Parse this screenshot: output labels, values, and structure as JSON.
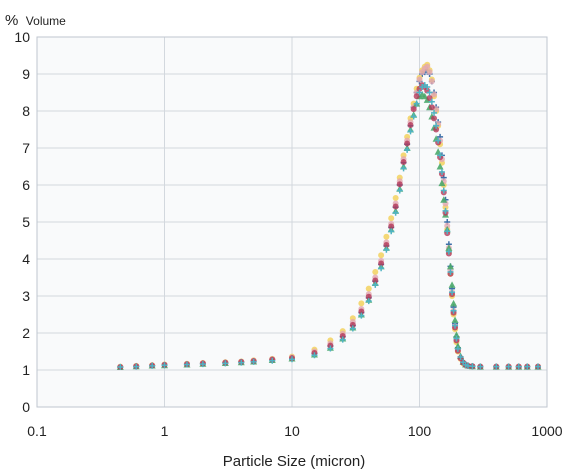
{
  "chart_data": {
    "type": "scatter",
    "title": "",
    "xlabel": "Particle Size (micron)",
    "ylabel_symbol": "%",
    "ylabel": "Volume",
    "x_scale": "log",
    "xlim": [
      0.1,
      1000
    ],
    "ylim": [
      0,
      10
    ],
    "grid": true,
    "x_ticks": [
      {
        "value": 0.1,
        "label": "0.1"
      },
      {
        "value": 1,
        "label": "1"
      },
      {
        "value": 10,
        "label": "10"
      },
      {
        "value": 100,
        "label": "100"
      },
      {
        "value": 1000,
        "label": "1000"
      }
    ],
    "y_ticks": [
      {
        "value": 0,
        "label": "0"
      },
      {
        "value": 1,
        "label": "1"
      },
      {
        "value": 2,
        "label": "2"
      },
      {
        "value": 3,
        "label": "3"
      },
      {
        "value": 4,
        "label": "4"
      },
      {
        "value": 5,
        "label": "5"
      },
      {
        "value": 6,
        "label": "6"
      },
      {
        "value": 7,
        "label": "7"
      },
      {
        "value": 8,
        "label": "8"
      },
      {
        "value": 9,
        "label": "9"
      },
      {
        "value": 10,
        "label": "10"
      }
    ],
    "x": [
      0.45,
      0.6,
      0.8,
      1,
      1.5,
      2,
      3,
      4,
      5,
      7,
      10,
      15,
      20,
      25,
      30,
      35,
      40,
      45,
      50,
      55,
      60,
      65,
      70,
      75,
      80,
      85,
      90,
      95,
      100,
      105,
      110,
      115,
      120,
      125,
      130,
      135,
      140,
      145,
      150,
      155,
      160,
      165,
      170,
      175,
      180,
      185,
      190,
      195,
      200,
      210,
      220,
      230,
      240,
      260,
      300,
      400,
      500,
      600,
      700,
      850
    ],
    "series": [
      {
        "color": "#3d6fa8",
        "marker": "plus",
        "values": [
          1.08,
          1.1,
          1.12,
          1.14,
          1.16,
          1.18,
          1.2,
          1.22,
          1.24,
          1.28,
          1.32,
          1.45,
          1.65,
          1.9,
          2.2,
          2.55,
          2.95,
          3.4,
          3.85,
          4.35,
          4.85,
          5.4,
          6.0,
          6.6,
          7.1,
          7.6,
          8.1,
          8.5,
          8.8,
          9.0,
          9.05,
          9.1,
          9.0,
          8.8,
          8.5,
          8.1,
          7.7,
          7.3,
          6.8,
          6.2,
          5.6,
          5.0,
          4.4,
          3.8,
          3.2,
          2.7,
          2.25,
          1.9,
          1.6,
          1.35,
          1.22,
          1.15,
          1.12,
          1.1,
          1.09,
          1.09,
          1.09,
          1.09,
          1.09,
          1.09
        ]
      },
      {
        "color": "#f2cf55",
        "marker": "circle",
        "values": [
          1.09,
          1.11,
          1.13,
          1.15,
          1.17,
          1.19,
          1.21,
          1.23,
          1.26,
          1.3,
          1.36,
          1.55,
          1.8,
          2.05,
          2.4,
          2.8,
          3.2,
          3.65,
          4.1,
          4.6,
          5.1,
          5.65,
          6.2,
          6.8,
          7.3,
          7.8,
          8.2,
          8.6,
          8.9,
          9.1,
          9.2,
          9.25,
          9.1,
          8.85,
          8.4,
          8.0,
          7.6,
          7.1,
          6.6,
          6.0,
          5.4,
          4.8,
          4.2,
          3.6,
          3.0,
          2.5,
          2.1,
          1.75,
          1.5,
          1.3,
          1.18,
          1.13,
          1.11,
          1.1,
          1.09,
          1.09,
          1.09,
          1.09,
          1.09,
          1.09
        ]
      },
      {
        "color": "#e2a8b2",
        "marker": "circle",
        "values": [
          1.08,
          1.1,
          1.12,
          1.14,
          1.16,
          1.18,
          1.2,
          1.22,
          1.25,
          1.29,
          1.34,
          1.5,
          1.72,
          1.98,
          2.3,
          2.65,
          3.05,
          3.5,
          3.95,
          4.45,
          4.95,
          5.5,
          6.1,
          6.7,
          7.2,
          7.7,
          8.1,
          8.5,
          8.85,
          9.05,
          9.15,
          9.2,
          9.05,
          8.8,
          8.45,
          8.05,
          7.65,
          7.2,
          6.7,
          6.1,
          5.5,
          4.9,
          4.3,
          3.7,
          3.1,
          2.6,
          2.18,
          1.82,
          1.55,
          1.32,
          1.2,
          1.14,
          1.11,
          1.1,
          1.09,
          1.09,
          1.09,
          1.09,
          1.09,
          1.09
        ]
      },
      {
        "color": "#4aa86a",
        "marker": "triangle",
        "values": [
          1.08,
          1.1,
          1.12,
          1.13,
          1.15,
          1.17,
          1.19,
          1.21,
          1.23,
          1.27,
          1.31,
          1.42,
          1.6,
          1.85,
          2.15,
          2.5,
          2.9,
          3.35,
          3.8,
          4.3,
          4.8,
          5.3,
          5.9,
          6.5,
          7.0,
          7.5,
          7.9,
          8.2,
          8.4,
          8.45,
          8.4,
          8.3,
          8.1,
          7.85,
          7.55,
          7.25,
          6.9,
          6.5,
          6.05,
          5.6,
          5.2,
          4.8,
          4.3,
          3.8,
          3.3,
          2.8,
          2.35,
          1.95,
          1.65,
          1.38,
          1.22,
          1.15,
          1.12,
          1.1,
          1.09,
          1.09,
          1.09,
          1.09,
          1.09,
          1.09
        ]
      },
      {
        "color": "#b53a5a",
        "marker": "circle",
        "values": [
          1.08,
          1.1,
          1.12,
          1.14,
          1.16,
          1.18,
          1.2,
          1.22,
          1.24,
          1.28,
          1.32,
          1.46,
          1.66,
          1.92,
          2.22,
          2.58,
          2.98,
          3.42,
          3.88,
          4.38,
          4.88,
          5.42,
          6.02,
          6.62,
          7.12,
          7.62,
          8.05,
          8.4,
          8.6,
          8.7,
          8.65,
          8.55,
          8.35,
          8.1,
          7.8,
          7.5,
          7.15,
          6.75,
          6.3,
          5.8,
          5.25,
          4.7,
          4.15,
          3.6,
          3.05,
          2.55,
          2.15,
          1.8,
          1.52,
          1.32,
          1.2,
          1.14,
          1.11,
          1.1,
          1.09,
          1.09,
          1.09,
          1.09,
          1.09,
          1.09
        ]
      },
      {
        "color": "#4fb3c4",
        "marker": "plus",
        "values": [
          1.08,
          1.09,
          1.11,
          1.13,
          1.15,
          1.16,
          1.18,
          1.2,
          1.22,
          1.25,
          1.29,
          1.4,
          1.58,
          1.82,
          2.12,
          2.47,
          2.86,
          3.3,
          3.75,
          4.25,
          4.75,
          5.25,
          5.85,
          6.45,
          6.95,
          7.45,
          7.85,
          8.2,
          8.5,
          8.65,
          8.7,
          8.65,
          8.5,
          8.25,
          7.95,
          7.6,
          7.2,
          6.8,
          6.35,
          5.85,
          5.3,
          4.75,
          4.2,
          3.65,
          3.1,
          2.6,
          2.2,
          1.85,
          1.57,
          1.35,
          1.21,
          1.14,
          1.11,
          1.1,
          1.09,
          1.09,
          1.09,
          1.09,
          1.09,
          1.09
        ]
      }
    ]
  }
}
